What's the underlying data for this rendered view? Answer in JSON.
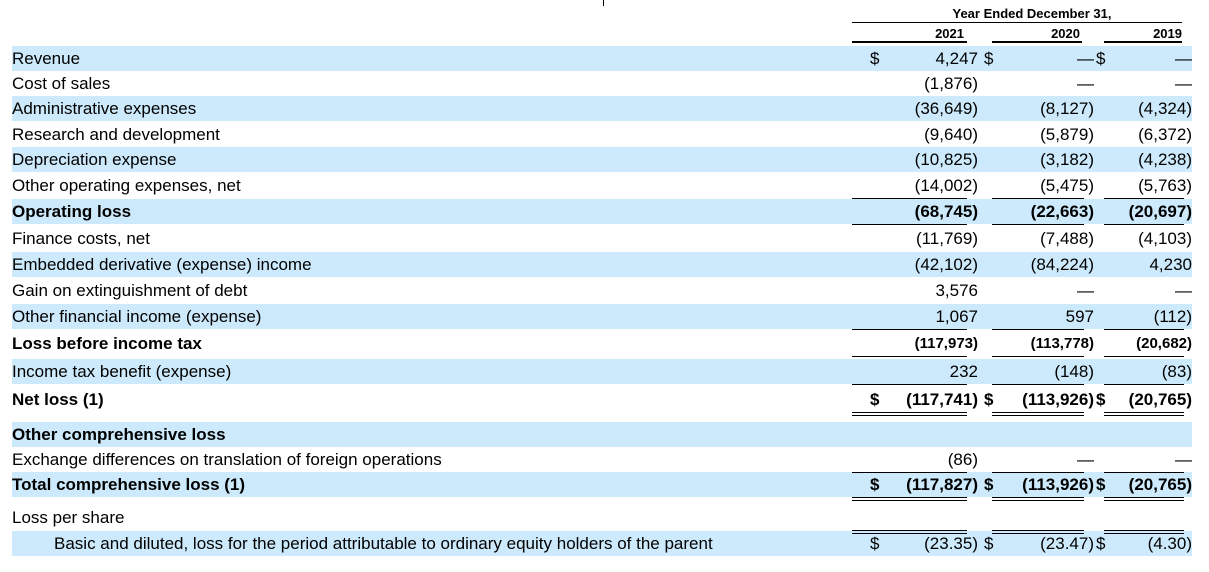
{
  "header": {
    "title": "Year Ended December 31,",
    "years": [
      "2021",
      "2020",
      "2019"
    ]
  },
  "rows": [
    {
      "label": "Revenue",
      "shade": true,
      "bold": false,
      "cur": [
        "$",
        "$",
        "$"
      ],
      "values": [
        "4,247",
        "—",
        "—"
      ]
    },
    {
      "label": "Cost of sales",
      "shade": false,
      "bold": false,
      "values": [
        "(1,876)",
        "—",
        "—"
      ]
    },
    {
      "label": "Administrative expenses",
      "shade": true,
      "bold": false,
      "values": [
        "(36,649)",
        "(8,127)",
        "(4,324)"
      ]
    },
    {
      "label": "Research and development",
      "shade": false,
      "bold": false,
      "values": [
        "(9,640)",
        "(5,879)",
        "(6,372)"
      ]
    },
    {
      "label": "Depreciation expense",
      "shade": true,
      "bold": false,
      "values": [
        "(10,825)",
        "(3,182)",
        "(4,238)"
      ]
    },
    {
      "label": "Other operating expenses, net",
      "shade": false,
      "bold": false,
      "values": [
        "(14,002)",
        "(5,475)",
        "(5,763)"
      ]
    },
    {
      "label": "Operating loss",
      "shade": true,
      "bold": true,
      "values": [
        "(68,745)",
        "(22,663)",
        "(20,697)"
      ]
    },
    {
      "label": "Finance costs, net",
      "shade": false,
      "bold": false,
      "values": [
        "(11,769)",
        "(7,488)",
        "(4,103)"
      ]
    },
    {
      "label": "Embedded derivative (expense) income",
      "shade": true,
      "bold": false,
      "values": [
        "(42,102)",
        "(84,224)",
        "4,230"
      ]
    },
    {
      "label": "Gain on extinguishment of debt",
      "shade": false,
      "bold": false,
      "values": [
        "3,576",
        "—",
        "—"
      ]
    },
    {
      "label": "Other financial income (expense)",
      "shade": true,
      "bold": false,
      "values": [
        "1,067",
        "597",
        "(112)"
      ]
    },
    {
      "label": "Loss before income tax",
      "shade": false,
      "bold": true,
      "cond": true,
      "values": [
        "(117,973)",
        "(113,778)",
        "(20,682)"
      ]
    },
    {
      "label": "Income tax benefit (expense)",
      "shade": true,
      "bold": false,
      "values": [
        "232",
        "(148)",
        "(83)"
      ]
    },
    {
      "label": "Net loss (1)",
      "shade": false,
      "bold": true,
      "cur": [
        "$",
        "$",
        "$"
      ],
      "values": [
        "(117,741)",
        "(113,926)",
        "(20,765)"
      ]
    },
    {
      "label": "Other comprehensive loss",
      "shade": true,
      "bold": true,
      "values": [
        "",
        "",
        ""
      ]
    },
    {
      "label": "Exchange differences on translation of foreign operations",
      "shade": false,
      "bold": false,
      "values": [
        "(86)",
        "—",
        "—"
      ]
    },
    {
      "label": "Total comprehensive loss (1)",
      "shade": true,
      "bold": true,
      "cur": [
        "$",
        "$",
        "$"
      ],
      "values": [
        "(117,827)",
        "(113,926)",
        "(20,765)"
      ]
    },
    {
      "label": "Loss per share",
      "shade": false,
      "bold": false,
      "values": [
        "",
        "",
        ""
      ]
    },
    {
      "label": "Basic and diluted, loss for the period attributable to ordinary equity holders of the parent",
      "shade": true,
      "bold": false,
      "indent": true,
      "cur": [
        "$",
        "$",
        "$"
      ],
      "values": [
        "(23.35)",
        "(23.47)",
        "(4.30)"
      ]
    }
  ]
}
